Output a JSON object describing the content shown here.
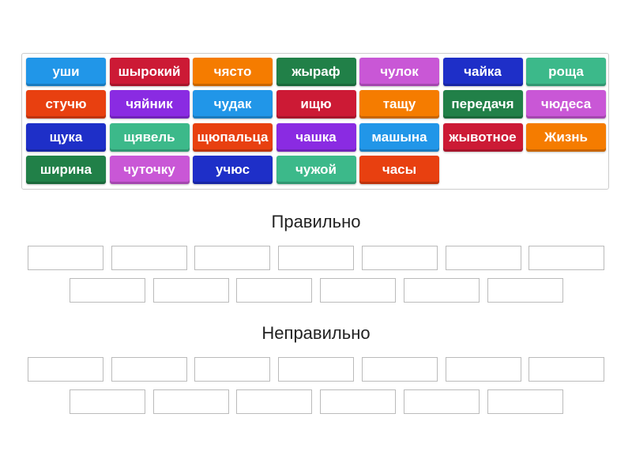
{
  "colors": {
    "blue": "#2196e8",
    "red": "#cc1a35",
    "orange": "#f57c00",
    "green": "#218048",
    "magenta": "#c957d6",
    "navy": "#1e2fc8",
    "teal": "#3cb98a",
    "orangered": "#e84010",
    "purple": "#8a2be2"
  },
  "tiles": [
    [
      "уши",
      "blue"
    ],
    [
      "ырокий",
      "red"
    ],
    [
      "чясто",
      "orange"
    ],
    [
      "жыраф",
      "green"
    ],
    [
      "чулок",
      "magenta"
    ],
    [
      "чайка",
      "navy"
    ],
    [
      "роща",
      "teal"
    ],
    [
      "стучю",
      "orangered"
    ],
    [
      "чяйник",
      "purple"
    ],
    [
      "чудак",
      "blue"
    ],
    [
      "ищю",
      "red"
    ],
    [
      "тащу",
      "orange"
    ],
    [
      "передачя",
      "green"
    ],
    [
      "чюдеса",
      "magenta"
    ],
    [
      "щука",
      "navy"
    ],
    [
      "щявель",
      "teal"
    ],
    [
      "щюпальца",
      "orangered"
    ],
    [
      "чашка",
      "purple"
    ],
    [
      "машына",
      "blue"
    ],
    [
      "жывотное",
      "red"
    ],
    [
      "Жизнь",
      "orange"
    ],
    [
      "ширина",
      "green"
    ],
    [
      "чуточку",
      "magenta"
    ],
    [
      "учюс",
      "navy"
    ],
    [
      "чужой",
      "teal"
    ],
    [
      "часы",
      "orangered"
    ]
  ],
  "groups": [
    {
      "title": "Правильно"
    },
    {
      "title": "Неправильно"
    }
  ]
}
